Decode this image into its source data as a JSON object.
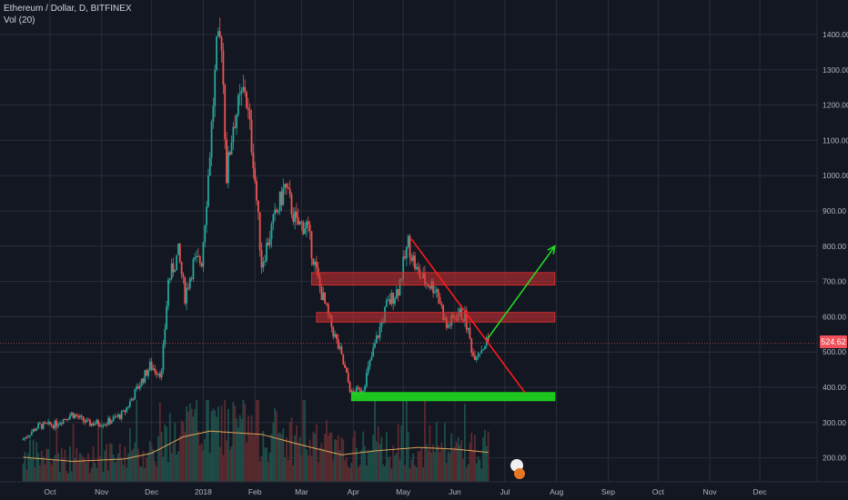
{
  "header": {
    "symbol_line": "Ethereum / Dollar, D, BITFINEX",
    "indicator_line": "Vol (20)"
  },
  "last_price_label": "524.62",
  "colors": {
    "background": "#131722",
    "grid": "#2a2e39",
    "up": "#26a69a",
    "down": "#ef5350",
    "volume_ma": "#e0a458",
    "resistance_zone": "#d32f2f",
    "support_zone": "#1fd81f",
    "trendline": "#ff1a1a",
    "projection_arrow": "#22dd22"
  },
  "chart_data": {
    "type": "candlestick",
    "title": "Ethereum / Dollar, D, BITFINEX",
    "indicator": "Vol (20)",
    "xlabel": "",
    "ylabel": "",
    "ylim": [
      130,
      1460
    ],
    "y_ticks": [
      "200.00",
      "300.00",
      "400.00",
      "500.00",
      "600.00",
      "700.00",
      "800.00",
      "900.00",
      "1000.00",
      "1100.00",
      "1200.00",
      "1300.00",
      "1400.00"
    ],
    "x_ticks": [
      "Oct",
      "Nov",
      "Dec",
      "2018",
      "Feb",
      "Mar",
      "Apr",
      "May",
      "Jun",
      "Jul",
      "Aug",
      "Sep",
      "Oct",
      "Nov",
      "Dec"
    ],
    "last_price": 524.62,
    "price_path": [
      [
        "2017-09-15",
        250
      ],
      [
        "2017-09-25",
        290
      ],
      [
        "2017-10-05",
        295
      ],
      [
        "2017-10-15",
        325
      ],
      [
        "2017-10-25",
        297
      ],
      [
        "2017-11-05",
        300
      ],
      [
        "2017-11-15",
        325
      ],
      [
        "2017-11-25",
        410
      ],
      [
        "2017-12-01",
        460
      ],
      [
        "2017-12-08",
        440
      ],
      [
        "2017-12-12",
        700
      ],
      [
        "2017-12-18",
        780
      ],
      [
        "2017-12-22",
        660
      ],
      [
        "2017-12-27",
        750
      ],
      [
        "2018-01-01",
        760
      ],
      [
        "2018-01-05",
        1000
      ],
      [
        "2018-01-10",
        1350
      ],
      [
        "2018-01-13",
        1390
      ],
      [
        "2018-01-16",
        1000
      ],
      [
        "2018-01-20",
        1150
      ],
      [
        "2018-01-27",
        1250
      ],
      [
        "2018-02-01",
        1050
      ],
      [
        "2018-02-06",
        750
      ],
      [
        "2018-02-12",
        850
      ],
      [
        "2018-02-20",
        970
      ],
      [
        "2018-02-27",
        860
      ],
      [
        "2018-03-05",
        860
      ],
      [
        "2018-03-12",
        700
      ],
      [
        "2018-03-18",
        600
      ],
      [
        "2018-03-25",
        500
      ],
      [
        "2018-04-01",
        380
      ],
      [
        "2018-04-08",
        400
      ],
      [
        "2018-04-15",
        520
      ],
      [
        "2018-04-22",
        630
      ],
      [
        "2018-04-29",
        680
      ],
      [
        "2018-05-05",
        810
      ],
      [
        "2018-05-10",
        730
      ],
      [
        "2018-05-15",
        700
      ],
      [
        "2018-05-22",
        680
      ],
      [
        "2018-05-28",
        570
      ],
      [
        "2018-06-04",
        610
      ],
      [
        "2018-06-08",
        600
      ],
      [
        "2018-06-13",
        490
      ],
      [
        "2018-06-18",
        510
      ],
      [
        "2018-06-21",
        530
      ]
    ],
    "volume_ma_path": [
      [
        "2017-09-15",
        0.3
      ],
      [
        "2017-10-15",
        0.25
      ],
      [
        "2017-11-15",
        0.28
      ],
      [
        "2017-12-01",
        0.35
      ],
      [
        "2017-12-20",
        0.55
      ],
      [
        "2018-01-05",
        0.62
      ],
      [
        "2018-01-20",
        0.6
      ],
      [
        "2018-02-05",
        0.58
      ],
      [
        "2018-03-01",
        0.45
      ],
      [
        "2018-03-25",
        0.33
      ],
      [
        "2018-04-15",
        0.38
      ],
      [
        "2018-05-10",
        0.42
      ],
      [
        "2018-06-01",
        0.4
      ],
      [
        "2018-06-21",
        0.36
      ]
    ],
    "annotations": [
      {
        "kind": "zone",
        "label": "resistance",
        "from": "2018-03-07",
        "to": "2018-07-31",
        "low": 690,
        "high": 725
      },
      {
        "kind": "zone",
        "label": "resistance",
        "from": "2018-03-10",
        "to": "2018-07-31",
        "low": 585,
        "high": 612
      },
      {
        "kind": "zone",
        "label": "support",
        "from": "2018-03-31",
        "to": "2018-07-31",
        "low": 362,
        "high": 385
      },
      {
        "kind": "trendline",
        "from": [
          "2018-05-06",
          820
        ],
        "to": [
          "2018-07-13",
          385
        ]
      },
      {
        "kind": "arrow",
        "from": [
          "2018-06-21",
          540
        ],
        "to": [
          "2018-07-31",
          800
        ]
      }
    ]
  }
}
